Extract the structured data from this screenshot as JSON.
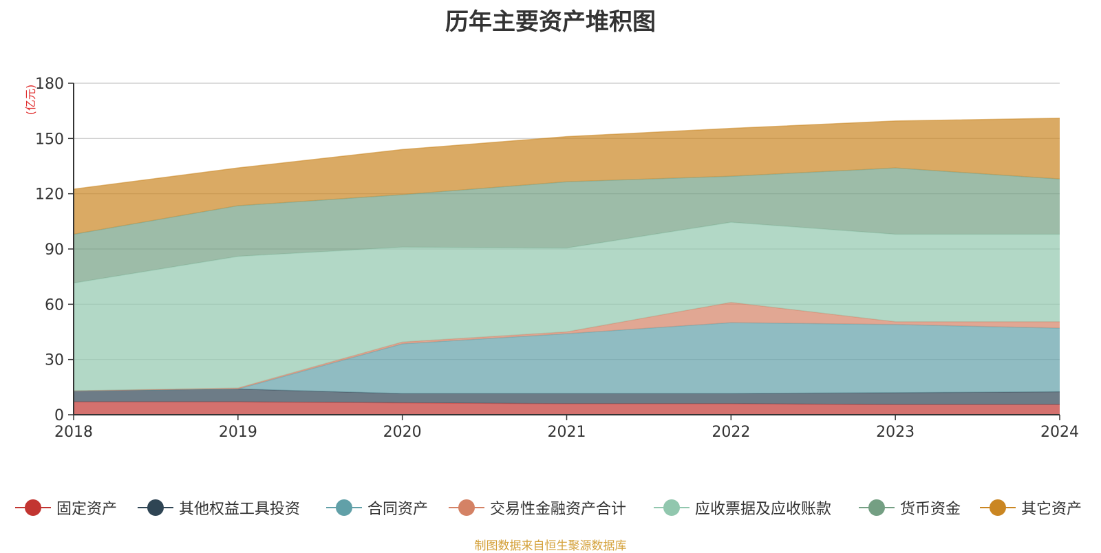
{
  "chart_data": {
    "type": "area",
    "stacked": true,
    "title": "历年主要资产堆积图",
    "unit_label": "(亿元)",
    "categories": [
      "2018",
      "2019",
      "2020",
      "2021",
      "2022",
      "2023",
      "2024"
    ],
    "ylim": [
      0,
      180
    ],
    "yticks": [
      0,
      30,
      60,
      90,
      120,
      150,
      180
    ],
    "grid": true,
    "legend_position": "bottom",
    "series": [
      {
        "name": "固定资产",
        "color": "#c23531",
        "values": [
          7.0,
          7.0,
          6.5,
          6.0,
          6.0,
          5.5,
          5.5
        ]
      },
      {
        "name": "其他权益工具投资",
        "color": "#2f4554",
        "values": [
          6.0,
          7.0,
          5.0,
          5.5,
          5.5,
          6.5,
          7.0
        ]
      },
      {
        "name": "合同资产",
        "color": "#61a0a8",
        "values": [
          0.0,
          0.0,
          27.0,
          32.5,
          38.5,
          37.0,
          34.5
        ]
      },
      {
        "name": "交易性金融资产合计",
        "color": "#d48265",
        "values": [
          0.0,
          0.5,
          1.0,
          1.0,
          11.0,
          1.5,
          3.5
        ]
      },
      {
        "name": "应收票据及应收账款",
        "color": "#91c7ae",
        "values": [
          58.5,
          71.5,
          51.5,
          45.5,
          43.5,
          47.5,
          47.5
        ]
      },
      {
        "name": "货币资金",
        "color": "#749f83",
        "values": [
          26.5,
          27.5,
          28.5,
          36.0,
          25.0,
          36.0,
          30.0
        ]
      },
      {
        "name": "其它资产",
        "color": "#ca8622",
        "values": [
          24.5,
          20.5,
          24.5,
          24.5,
          26.0,
          25.5,
          33.0
        ]
      }
    ]
  },
  "footer": {
    "source": "制图数据来自恒生聚源数据库"
  }
}
